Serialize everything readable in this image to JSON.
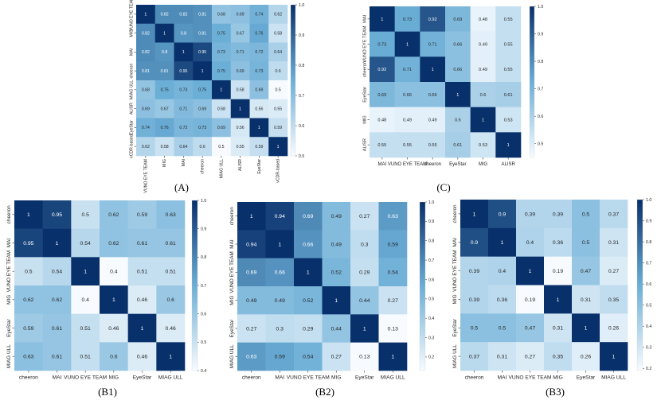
{
  "panel_labels": [
    "(A)",
    "(C)",
    "(B1)",
    "(B2)",
    "(B3)"
  ],
  "colormap": {
    "low": "#f7fbff",
    "mid": "#6baed6",
    "high": "#08306b"
  },
  "chart_data": [
    {
      "id": "A",
      "type": "heatmap",
      "rows": [
        "VUNO EYE TEAM",
        "MIG",
        "MAI",
        "cheeron",
        "MIAG ULL",
        "ALISR",
        "EyeStar",
        "vCDR-based"
      ],
      "cols": [
        "VUNO EYE TEAM",
        "MIG",
        "MAI",
        "cheeron",
        "MIAG ULL",
        "ALISR",
        "EyeStar",
        "vCDR-based"
      ],
      "values": [
        [
          1,
          0.82,
          0.82,
          0.81,
          0.68,
          0.69,
          0.74,
          0.62
        ],
        [
          0.82,
          1,
          0.8,
          0.81,
          0.75,
          0.67,
          0.76,
          0.58
        ],
        [
          0.82,
          0.8,
          1,
          0.95,
          0.73,
          0.71,
          0.72,
          0.64
        ],
        [
          0.81,
          0.81,
          0.95,
          1,
          0.75,
          0.69,
          0.73,
          0.6
        ],
        [
          0.68,
          0.75,
          0.73,
          0.75,
          1,
          0.58,
          0.69,
          0.5
        ],
        [
          0.69,
          0.67,
          0.71,
          0.69,
          0.58,
          1,
          0.56,
          0.55
        ],
        [
          0.74,
          0.76,
          0.72,
          0.73,
          0.69,
          0.56,
          1,
          0.59
        ],
        [
          0.62,
          0.58,
          0.64,
          0.6,
          0.5,
          0.55,
          0.59,
          1
        ]
      ],
      "vmin": 0.5,
      "vmax": 1.0,
      "colorbar_ticks": [
        "0.5",
        "0.6",
        "0.7",
        "0.8",
        "0.9",
        "1.0"
      ]
    },
    {
      "id": "C",
      "type": "heatmap",
      "rows": [
        "MAI",
        "VUNO EYE TEAM",
        "cheeron",
        "EyeStar",
        "MIG",
        "ALISR"
      ],
      "cols": [
        "MAI",
        "VUNO EYE TEAM",
        "cheeron",
        "EyeStar",
        "MIG",
        "ALISR"
      ],
      "values": [
        [
          1,
          0.73,
          0.92,
          0.69,
          0.48,
          0.55
        ],
        [
          0.73,
          1,
          0.71,
          0.66,
          0.49,
          0.55
        ],
        [
          0.92,
          0.71,
          1,
          0.66,
          0.49,
          0.55
        ],
        [
          0.69,
          0.66,
          0.66,
          1,
          0.6,
          0.61
        ],
        [
          0.48,
          0.49,
          0.49,
          0.6,
          1,
          0.53
        ],
        [
          0.55,
          0.55,
          0.55,
          0.61,
          0.53,
          1
        ]
      ],
      "vmin": 0.45,
      "vmax": 1.0,
      "colorbar_ticks": [
        "0.5",
        "0.6",
        "0.7",
        "0.8",
        "0.9",
        "1.0"
      ]
    },
    {
      "id": "B1",
      "type": "heatmap",
      "rows": [
        "cheeron",
        "MAI",
        "VUNO EYE TEAM",
        "MIG",
        "EyeStar",
        "MIAG ULL"
      ],
      "cols": [
        "cheeron",
        "MAI",
        "VUNO EYE TEAM",
        "MIG",
        "EyeStar",
        "MIAG ULL"
      ],
      "values": [
        [
          1,
          0.95,
          0.5,
          0.62,
          0.59,
          0.63
        ],
        [
          0.95,
          1,
          0.54,
          0.62,
          0.61,
          0.61
        ],
        [
          0.5,
          0.54,
          1,
          0.4,
          0.51,
          0.51
        ],
        [
          0.62,
          0.62,
          0.4,
          1,
          0.46,
          0.6
        ],
        [
          0.59,
          0.61,
          0.51,
          0.46,
          1,
          0.46
        ],
        [
          0.63,
          0.61,
          0.51,
          0.6,
          0.46,
          1
        ]
      ],
      "vmin": 0.4,
      "vmax": 1.0,
      "colorbar_ticks": [
        "0.4",
        "0.5",
        "0.6",
        "0.7",
        "0.8",
        "0.9",
        "1.0"
      ]
    },
    {
      "id": "B2",
      "type": "heatmap",
      "rows": [
        "cheeron",
        "MAI",
        "VUNO EYE TEAM",
        "MIG",
        "EyeStar",
        "MIAG ULL"
      ],
      "cols": [
        "cheeron",
        "MAI",
        "VUNO EYE TEAM",
        "MIG",
        "EyeStar",
        "MIAG ULL"
      ],
      "values": [
        [
          1,
          0.94,
          0.69,
          0.49,
          0.27,
          0.63
        ],
        [
          0.94,
          1,
          0.66,
          0.49,
          0.3,
          0.59
        ],
        [
          0.69,
          0.66,
          1,
          0.52,
          0.29,
          0.54
        ],
        [
          0.49,
          0.49,
          0.52,
          1,
          0.44,
          0.27
        ],
        [
          0.27,
          0.3,
          0.29,
          0.44,
          1,
          0.13
        ],
        [
          0.63,
          0.59,
          0.54,
          0.27,
          0.13,
          1
        ]
      ],
      "vmin": 0.13,
      "vmax": 1.0,
      "colorbar_ticks": [
        "0.2",
        "0.3",
        "0.4",
        "0.5",
        "0.6",
        "0.7",
        "0.8",
        "0.9",
        "1.0"
      ]
    },
    {
      "id": "B3",
      "type": "heatmap",
      "rows": [
        "cheeron",
        "MAI",
        "VUNO EYE TEAM",
        "MIG",
        "EyeStar",
        "MIAG ULL"
      ],
      "cols": [
        "cheeron",
        "MAI",
        "VUNO EYE TEAM",
        "MIG",
        "EyeStar",
        "MIAG ULL"
      ],
      "values": [
        [
          1,
          0.9,
          0.39,
          0.39,
          0.5,
          0.37
        ],
        [
          0.9,
          1,
          0.4,
          0.36,
          0.5,
          0.31
        ],
        [
          0.39,
          0.4,
          1,
          0.19,
          0.47,
          0.27
        ],
        [
          0.39,
          0.36,
          0.19,
          1,
          0.31,
          0.35
        ],
        [
          0.5,
          0.5,
          0.47,
          0.31,
          1,
          0.26
        ],
        [
          0.37,
          0.31,
          0.27,
          0.35,
          0.26,
          1
        ]
      ],
      "vmin": 0.19,
      "vmax": 1.0,
      "colorbar_ticks": [
        "0.2",
        "0.3",
        "0.4",
        "0.5",
        "0.6",
        "0.7",
        "0.8",
        "0.9",
        "1.0"
      ]
    }
  ]
}
